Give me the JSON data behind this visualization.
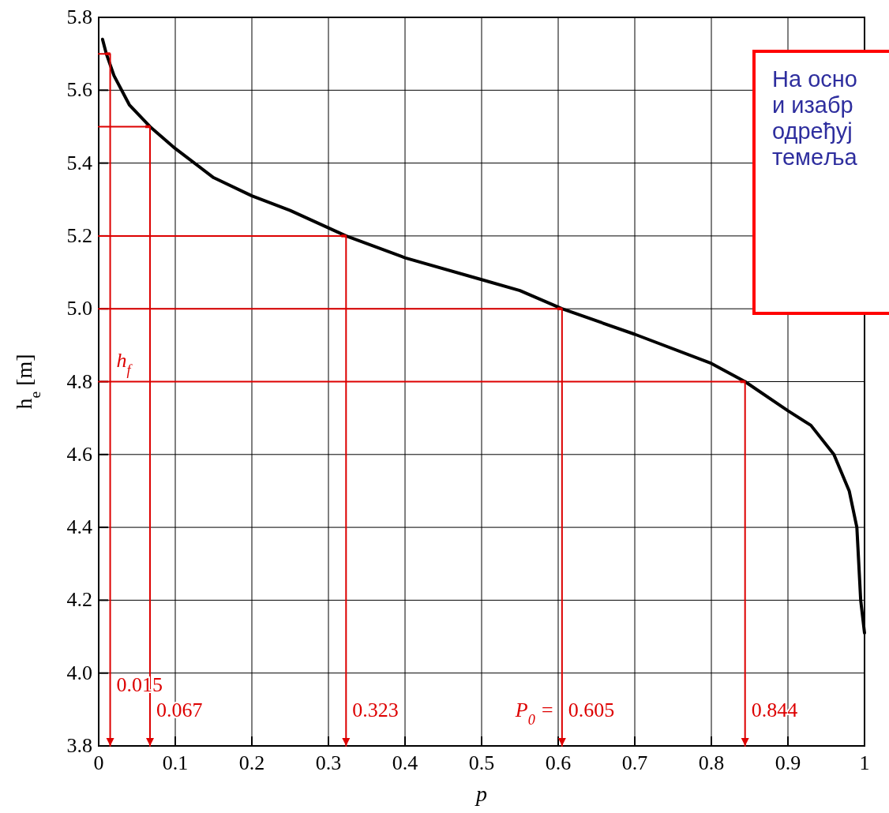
{
  "chart_data": {
    "type": "line",
    "xlabel": "p",
    "ylabel": "h$_{e}$ [m]",
    "xlim": [
      0,
      1
    ],
    "ylim": [
      3.8,
      5.8
    ],
    "xticks": [
      0,
      0.1,
      0.2,
      0.3,
      0.4,
      0.5,
      0.6,
      0.7,
      0.8,
      0.9,
      1
    ],
    "yticks": [
      3.8,
      {
        "value": 4,
        "label": "4.0"
      },
      4.2,
      4.4,
      4.6,
      4.8,
      {
        "value": 5,
        "label": "5.0"
      },
      5.2,
      5.4,
      5.6,
      5.8
    ],
    "grid": true,
    "line_style": "solid",
    "marker": "none",
    "series": [
      {
        "color": "#000000",
        "x": [
          0.005,
          0.01,
          0.02,
          0.04,
          0.067,
          0.1,
          0.15,
          0.2,
          0.25,
          0.323,
          0.4,
          0.5,
          0.55,
          0.605,
          0.7,
          0.8,
          0.844,
          0.9,
          0.93,
          0.96,
          0.98,
          0.99,
          0.995,
          1.0
        ],
        "values": [
          5.74,
          5.7,
          5.64,
          5.56,
          5.5,
          5.44,
          5.36,
          5.31,
          5.27,
          5.2,
          5.14,
          5.08,
          5.05,
          5.0,
          4.93,
          4.85,
          4.8,
          4.72,
          4.68,
          4.6,
          4.5,
          4.4,
          4.2,
          4.11
        ]
      },
      {
        "color": "#dd0000",
        "x": [
          0,
          0.015,
          0.015
        ],
        "values": [
          5.7,
          5.7,
          3.8
        ]
      },
      {
        "color": "#dd0000",
        "x": [
          0,
          0.067,
          0.067
        ],
        "values": [
          5.5,
          5.5,
          3.8
        ]
      },
      {
        "color": "#dd0000",
        "x": [
          0,
          0.323,
          0.323
        ],
        "values": [
          5.2,
          5.2,
          3.8
        ]
      },
      {
        "color": "#dd0000",
        "x": [
          0,
          0.605,
          0.605
        ],
        "values": [
          5.0,
          5.0,
          3.8
        ]
      },
      {
        "color": "#dd0000",
        "x": [
          0,
          0.844,
          0.844
        ],
        "values": [
          4.8,
          4.8,
          3.8
        ]
      }
    ],
    "annotations": [
      {
        "text": "0.015",
        "x": 0.015,
        "y": 3.95
      },
      {
        "text": "0.067",
        "x": 0.067,
        "y": 3.88
      },
      {
        "text": "0.323",
        "x": 0.323,
        "y": 3.88
      },
      {
        "text": "P$_{0}$ =",
        "x": 0.605,
        "y": 3.88
      },
      {
        "text": "0.605",
        "x": 0.605,
        "y": 3.88
      },
      {
        "text": "0.844",
        "x": 0.844,
        "y": 3.88
      },
      {
        "text": "h$_{f}$",
        "x": 0.015,
        "y": 4.84
      },
      "На осно\nи изабр\nодређуј\nтемеља"
    ]
  }
}
